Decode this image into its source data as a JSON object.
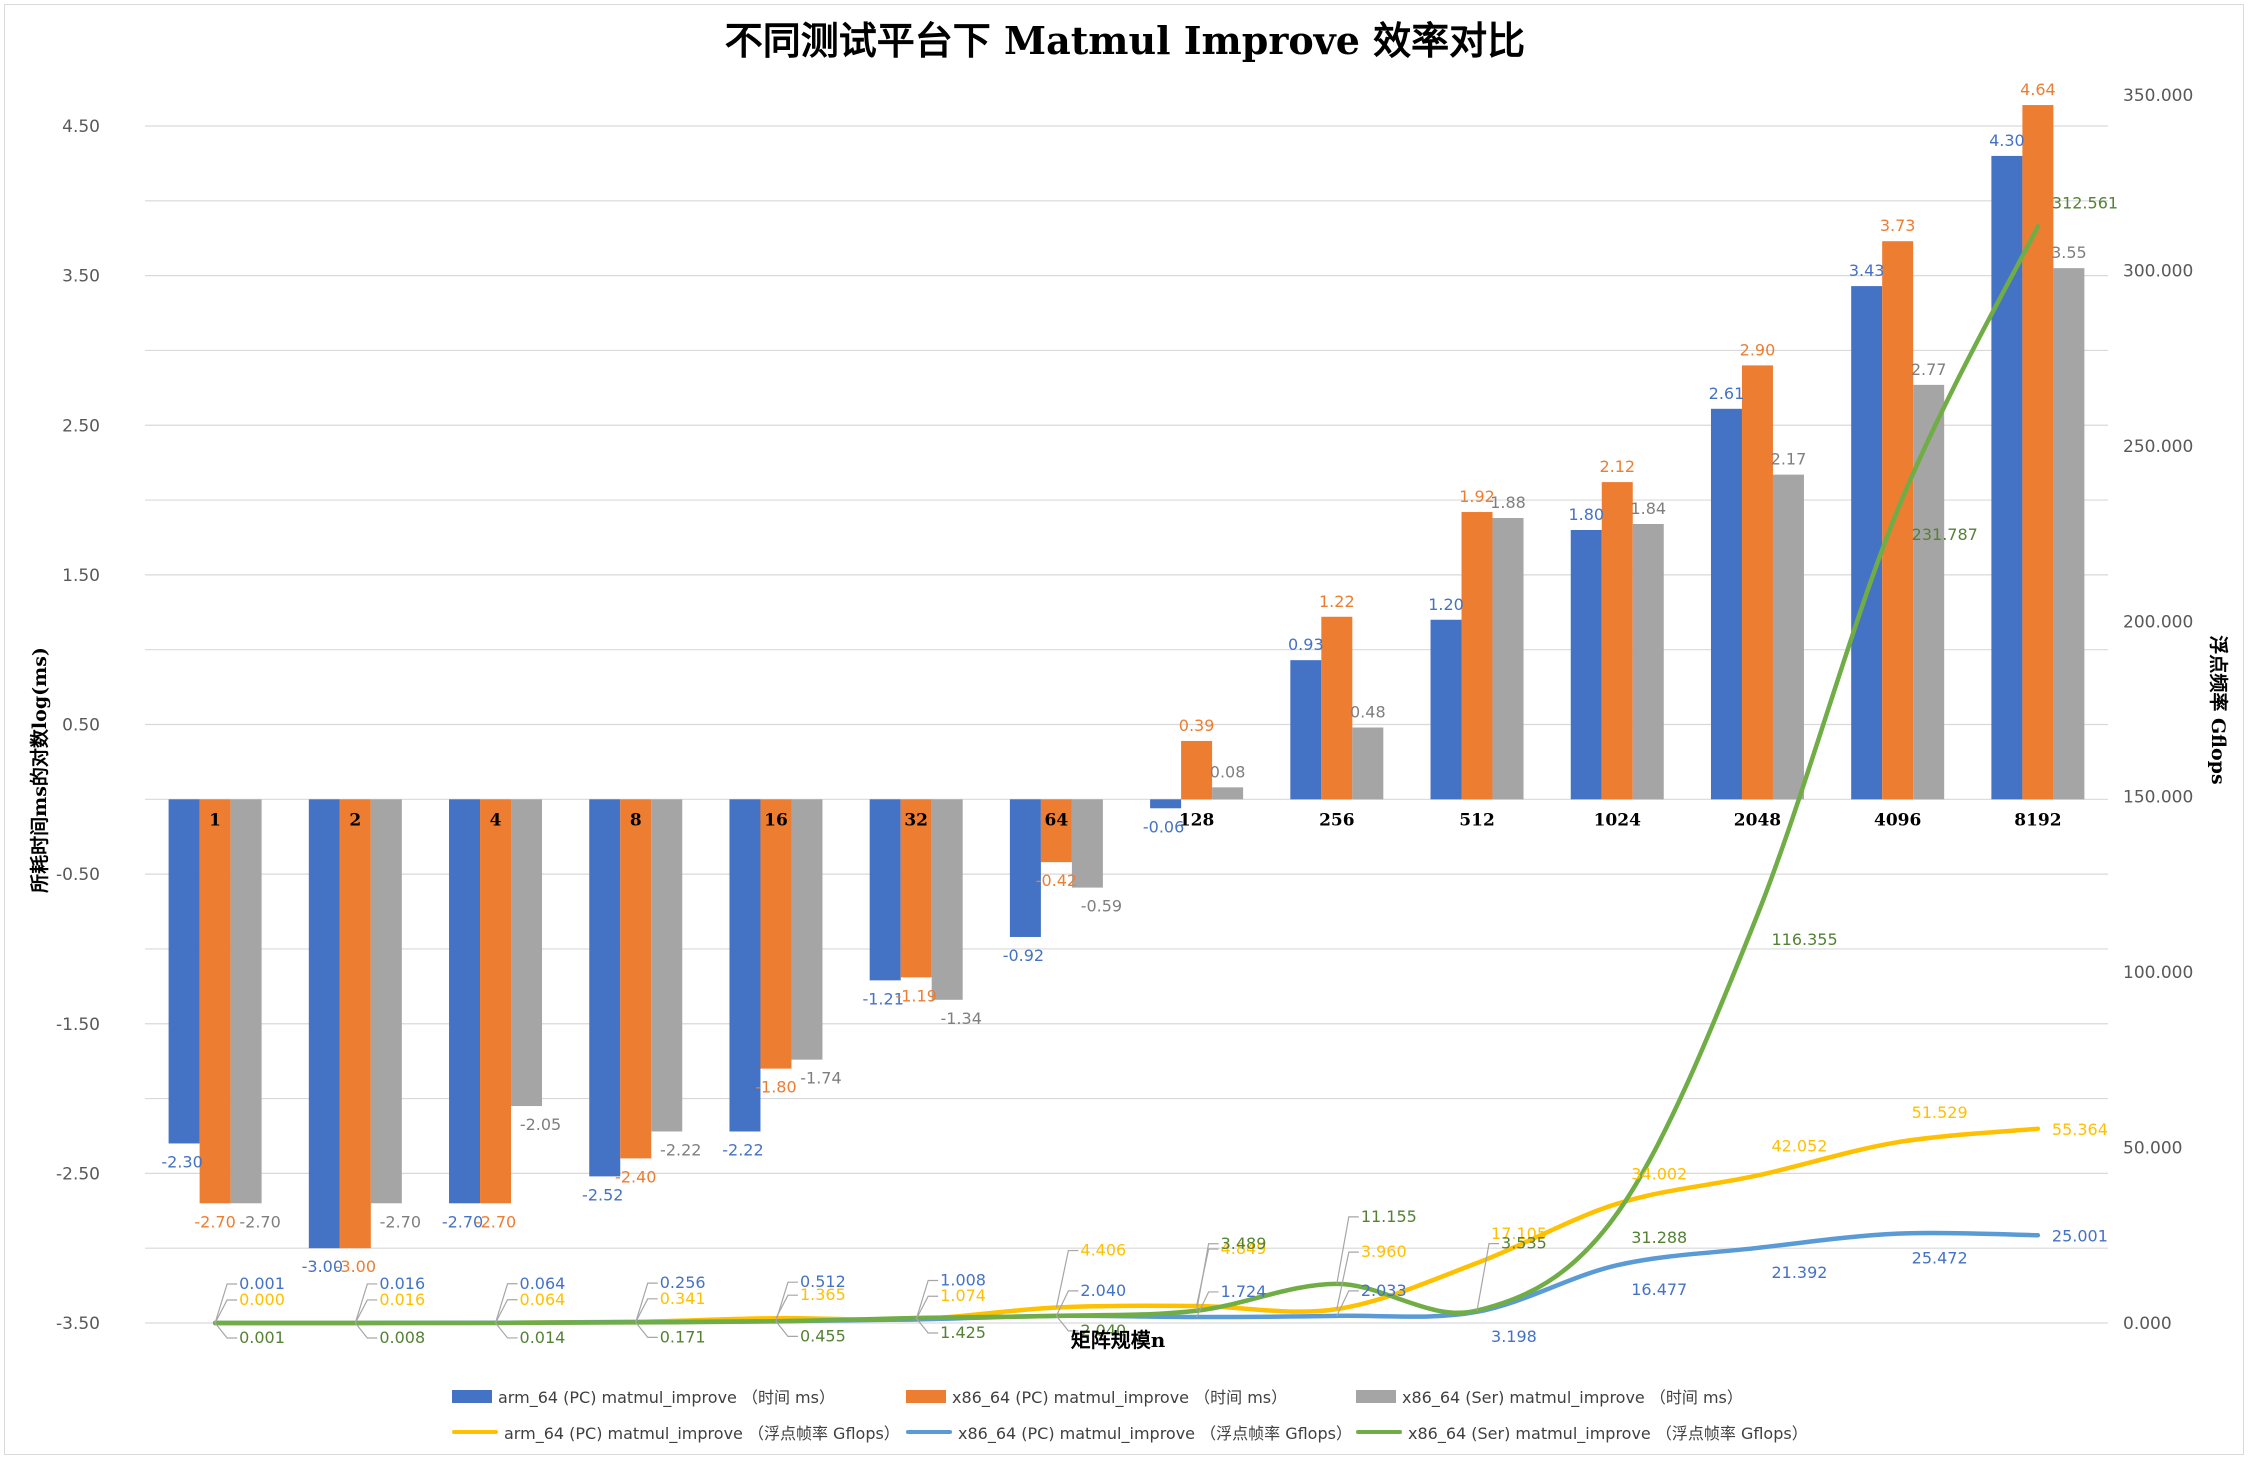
{
  "chart_data": {
    "type": "bar",
    "title": "不同测试平台下 Matmul Improve 效率对比",
    "xlabel": "矩阵规模n",
    "ylabel": "所耗时间ms的对数log(ms)",
    "y2label": "浮点频率 Gflops",
    "categories": [
      "1",
      "2",
      "4",
      "8",
      "16",
      "32",
      "64",
      "128",
      "256",
      "512",
      "1024",
      "2048",
      "4096",
      "8192"
    ],
    "ylim": [
      -3.5,
      5.0
    ],
    "y_ticks": [
      "-3.50",
      "-2.50",
      "-1.50",
      "-0.50",
      "0.50",
      "1.50",
      "2.50",
      "3.50",
      "4.50"
    ],
    "y2lim": [
      0,
      350
    ],
    "y2_ticks": [
      "0.000",
      "50.000",
      "100.000",
      "150.000",
      "200.000",
      "250.000",
      "300.000",
      "350.000"
    ],
    "grid": true,
    "legend_position": "bottom",
    "bar_series": [
      {
        "name": "arm_64 (PC) matmul_improve （时间 ms）",
        "color": "#4472C4",
        "values": [
          -2.3,
          -3.0,
          -2.7,
          -2.52,
          -2.22,
          -1.21,
          -0.92,
          -0.06,
          0.93,
          1.2,
          1.8,
          2.61,
          3.43,
          4.3
        ],
        "labels": [
          "-2.30",
          "-3.00",
          "-2.70",
          "-2.52",
          "-2.22",
          "-1.21",
          "-0.92",
          "-0.06",
          "0.93",
          "1.20",
          "1.80",
          "2.61",
          "3.43",
          "4.30"
        ]
      },
      {
        "name": "x86_64 (PC) matmul_improve （时间 ms）",
        "color": "#ED7D31",
        "values": [
          -2.7,
          -3.0,
          -2.7,
          -2.4,
          -1.8,
          -1.19,
          -0.42,
          0.39,
          1.22,
          1.92,
          2.12,
          2.9,
          3.73,
          4.64
        ],
        "labels": [
          "-2.70",
          "-3.00",
          "-2.70",
          "-2.40",
          "-1.80",
          "-1.19",
          "-0.42",
          "0.39",
          "1.22",
          "1.92",
          "2.12",
          "2.90",
          "3.73",
          "4.64"
        ]
      },
      {
        "name": "x86_64 (Ser) matmul_improve （时间 ms）",
        "color": "#A5A5A5",
        "values": [
          -2.7,
          -2.7,
          -2.05,
          -2.22,
          -1.74,
          -1.34,
          -0.59,
          0.08,
          0.48,
          1.88,
          1.84,
          2.17,
          2.77,
          3.55
        ],
        "labels": [
          "-2.70",
          "-2.70",
          "-2.05",
          "-2.22",
          "-1.74",
          "-1.34",
          "-0.59",
          "0.08",
          "0.48",
          "1.88",
          "1.84",
          "2.17",
          "2.77",
          "3.55"
        ]
      }
    ],
    "line_series": [
      {
        "name": "arm_64 (PC) matmul_improve （浮点帧率 Gflops）",
        "color": "#FFC000",
        "values": [
          0.0,
          0.016,
          0.064,
          0.341,
          1.365,
          1.074,
          4.406,
          4.849,
          3.96,
          17.105,
          34.002,
          42.052,
          51.529,
          55.364
        ],
        "labels": [
          "0.000",
          "0.016",
          "0.064",
          "0.341",
          "1.365",
          "1.074",
          "4.406",
          "4.849",
          "3.960",
          "17.105",
          "34.002",
          "42.052",
          "51.529",
          "55.364"
        ]
      },
      {
        "name": "x86_64 (PC) matmul_improve （浮点帧率 Gflops）",
        "color": "#5B9BD5",
        "values": [
          0.001,
          0.016,
          0.064,
          0.256,
          0.512,
          1.008,
          2.04,
          1.724,
          2.033,
          3.198,
          16.477,
          21.392,
          25.472,
          25.001
        ],
        "labels": [
          "0.001",
          "0.016",
          "0.064",
          "0.256",
          "0.512",
          "1.008",
          "2.040",
          "1.724",
          "2.033",
          "3.198",
          "16.477",
          "21.392",
          "25.472",
          "25.001"
        ]
      },
      {
        "name": "x86_64 (Ser) matmul_improve （浮点帧率 Gflops）",
        "color": "#70AD47",
        "values": [
          0.001,
          0.008,
          0.014,
          0.171,
          0.455,
          1.425,
          2.04,
          3.489,
          11.155,
          3.535,
          31.288,
          116.355,
          231.787,
          312.561
        ],
        "labels": [
          "0.001",
          "0.008",
          "0.014",
          "0.171",
          "0.455",
          "1.425",
          "2.040",
          "3.489",
          "11.155",
          "3.535",
          "31.288",
          "116.355",
          "231.787",
          "312.561"
        ]
      }
    ]
  }
}
